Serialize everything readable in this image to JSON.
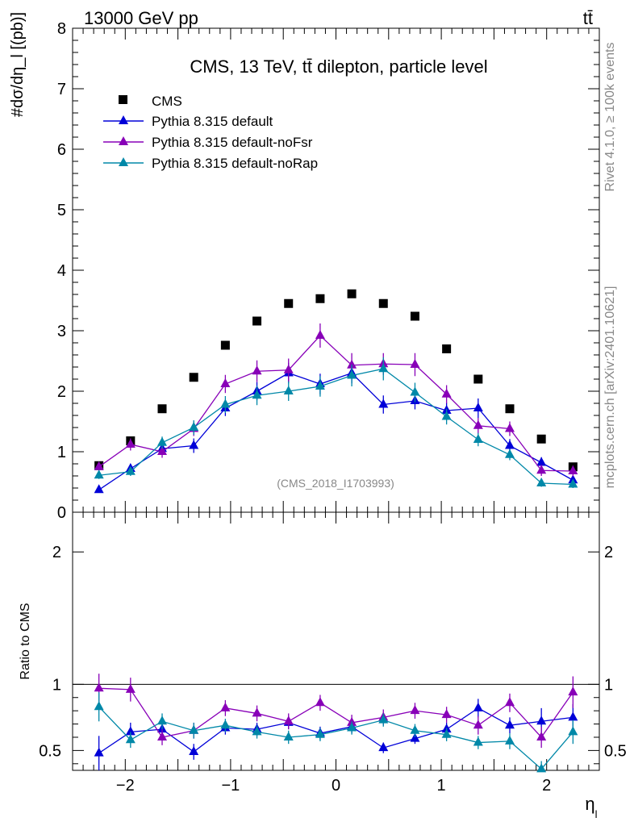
{
  "header": {
    "energy_label": "13000 GeV pp",
    "process_label": "tt̄",
    "side_label_top": "Rivet 4.1.0, ≥ 100k events",
    "side_label_bottom": "mcplots.cern.ch [arXiv:2401.10621]"
  },
  "chart_data": [
    {
      "type": "scatter",
      "title": "CMS, 13 TeV, tt̄ dilepton, particle level",
      "watermark": "(CMS_2018_I1703993)",
      "xlabel": "η_l",
      "ylabel": "#dσ/dη_l [(pb)]",
      "ylim": [
        0,
        8
      ],
      "xlim": [
        -2.5,
        2.5
      ],
      "x_ticks": [
        "−2",
        "−1",
        "0",
        "1",
        "2"
      ],
      "y_ticks": [
        "0",
        "1",
        "2",
        "3",
        "4",
        "5",
        "6",
        "7",
        "8"
      ],
      "x": [
        -2.25,
        -1.95,
        -1.65,
        -1.35,
        -1.05,
        -0.75,
        -0.45,
        -0.15,
        0.15,
        0.45,
        0.75,
        1.05,
        1.35,
        1.65,
        1.95,
        2.25
      ],
      "series": [
        {
          "name": "CMS",
          "color": "#000000",
          "marker": "square",
          "values": [
            0.77,
            1.18,
            1.71,
            2.23,
            2.76,
            3.16,
            3.45,
            3.53,
            3.61,
            3.45,
            3.24,
            2.7,
            2.2,
            1.71,
            1.21,
            0.75
          ]
        },
        {
          "name": "Pythia 8.315 default",
          "color": "#0000d8",
          "marker": "triangle",
          "values": [
            0.37,
            0.72,
            1.05,
            1.1,
            1.72,
            2.0,
            2.3,
            2.12,
            2.3,
            1.78,
            1.84,
            1.68,
            1.72,
            1.1,
            0.82,
            0.53
          ],
          "errors": [
            0.05,
            0.08,
            0.08,
            0.12,
            0.13,
            0.15,
            0.17,
            0.17,
            0.17,
            0.15,
            0.14,
            0.13,
            0.16,
            0.11,
            0.09,
            0.07
          ]
        },
        {
          "name": "Pythia 8.315 default-noFsr",
          "color": "#8800b8",
          "marker": "triangle",
          "values": [
            0.75,
            1.12,
            1.0,
            1.38,
            2.12,
            2.33,
            2.35,
            2.92,
            2.43,
            2.45,
            2.44,
            1.95,
            1.43,
            1.38,
            0.69,
            0.68
          ],
          "errors": [
            0.08,
            0.1,
            0.1,
            0.12,
            0.15,
            0.18,
            0.19,
            0.2,
            0.2,
            0.18,
            0.19,
            0.15,
            0.13,
            0.12,
            0.09,
            0.09
          ]
        },
        {
          "name": "Pythia 8.315 default-noRap",
          "color": "#0088a8",
          "marker": "triangle",
          "values": [
            0.61,
            0.67,
            1.15,
            1.4,
            1.78,
            1.93,
            2.0,
            2.08,
            2.26,
            2.37,
            1.98,
            1.58,
            1.2,
            0.95,
            0.48,
            0.46
          ],
          "errors": [
            0.06,
            0.07,
            0.1,
            0.12,
            0.14,
            0.16,
            0.16,
            0.17,
            0.18,
            0.19,
            0.16,
            0.13,
            0.11,
            0.09,
            0.06,
            0.06
          ]
        }
      ]
    },
    {
      "type": "scatter",
      "ylabel": "Ratio to CMS",
      "ylim": [
        0.35,
        2.3
      ],
      "y_ticks": [
        "0.5",
        "1",
        "2"
      ],
      "reference_line": 1,
      "x": [
        -2.25,
        -1.95,
        -1.65,
        -1.35,
        -1.05,
        -0.75,
        -0.45,
        -0.15,
        0.15,
        0.45,
        0.75,
        1.05,
        1.35,
        1.65,
        1.95,
        2.25
      ],
      "series": [
        {
          "name": "Pythia 8.315 default",
          "color": "#0000d8",
          "values": [
            0.48,
            0.64,
            0.66,
            0.49,
            0.67,
            0.66,
            0.71,
            0.63,
            0.68,
            0.52,
            0.59,
            0.66,
            0.82,
            0.69,
            0.72,
            0.75
          ],
          "errors": [
            0.13,
            0.07,
            0.05,
            0.06,
            0.05,
            0.05,
            0.05,
            0.05,
            0.05,
            0.04,
            0.04,
            0.05,
            0.07,
            0.06,
            0.1,
            0.1
          ]
        },
        {
          "name": "Pythia 8.315 default-noFsr",
          "color": "#8800b8",
          "values": [
            0.97,
            0.96,
            0.6,
            0.65,
            0.82,
            0.78,
            0.72,
            0.86,
            0.71,
            0.75,
            0.8,
            0.77,
            0.69,
            0.86,
            0.6,
            0.94
          ],
          "errors": [
            0.11,
            0.09,
            0.06,
            0.06,
            0.06,
            0.06,
            0.06,
            0.06,
            0.06,
            0.06,
            0.06,
            0.06,
            0.07,
            0.07,
            0.08,
            0.12
          ]
        },
        {
          "name": "Pythia 8.315 default-noRap",
          "color": "#0088a8",
          "values": [
            0.83,
            0.58,
            0.72,
            0.65,
            0.69,
            0.64,
            0.6,
            0.62,
            0.67,
            0.73,
            0.65,
            0.62,
            0.56,
            0.57,
            0.36,
            0.64
          ],
          "errors": [
            0.11,
            0.06,
            0.06,
            0.06,
            0.05,
            0.05,
            0.05,
            0.05,
            0.05,
            0.05,
            0.05,
            0.05,
            0.05,
            0.06,
            0.06,
            0.09
          ]
        }
      ]
    }
  ]
}
